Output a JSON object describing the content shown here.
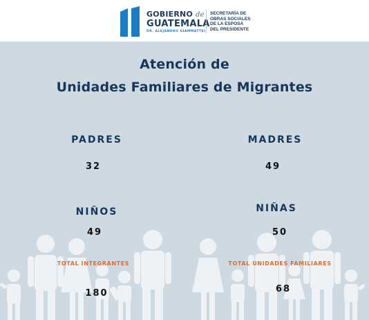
{
  "header": {
    "logo_line1": "GOBIERNO",
    "logo_de": "de",
    "logo_line2": "GUATEMALA",
    "logo_line3": "DR. ALEJANDRO GIAMMATTEI",
    "secretaria": [
      "SECRETARÍA DE",
      "OBRAS SOCIALES",
      "DE LA ESPOSA",
      "DEL PRESIDENTE"
    ],
    "colors": {
      "navy": "#1d3c5a",
      "blue": "#1d7bbf"
    }
  },
  "main": {
    "title_line1": "Atención de",
    "title_line2": "Unidades Familiares de Migrantes",
    "background": "#cfd9e1",
    "stats": {
      "padres": {
        "label": "PADRES",
        "value": "32"
      },
      "madres": {
        "label": "MADRES",
        "value": "49"
      },
      "ninos": {
        "label": "NIÑOS",
        "value": "49"
      },
      "ninas": {
        "label": "NIÑAS",
        "value": "50"
      },
      "total_integrantes": {
        "label": "TOTAL INTEGRANTES",
        "value": "180"
      },
      "total_unidades": {
        "label": "TOTAL UNIDADES FAMILIARES",
        "value": "68"
      }
    },
    "colors": {
      "title": "#17375a",
      "accent": "#e06b2e"
    }
  }
}
